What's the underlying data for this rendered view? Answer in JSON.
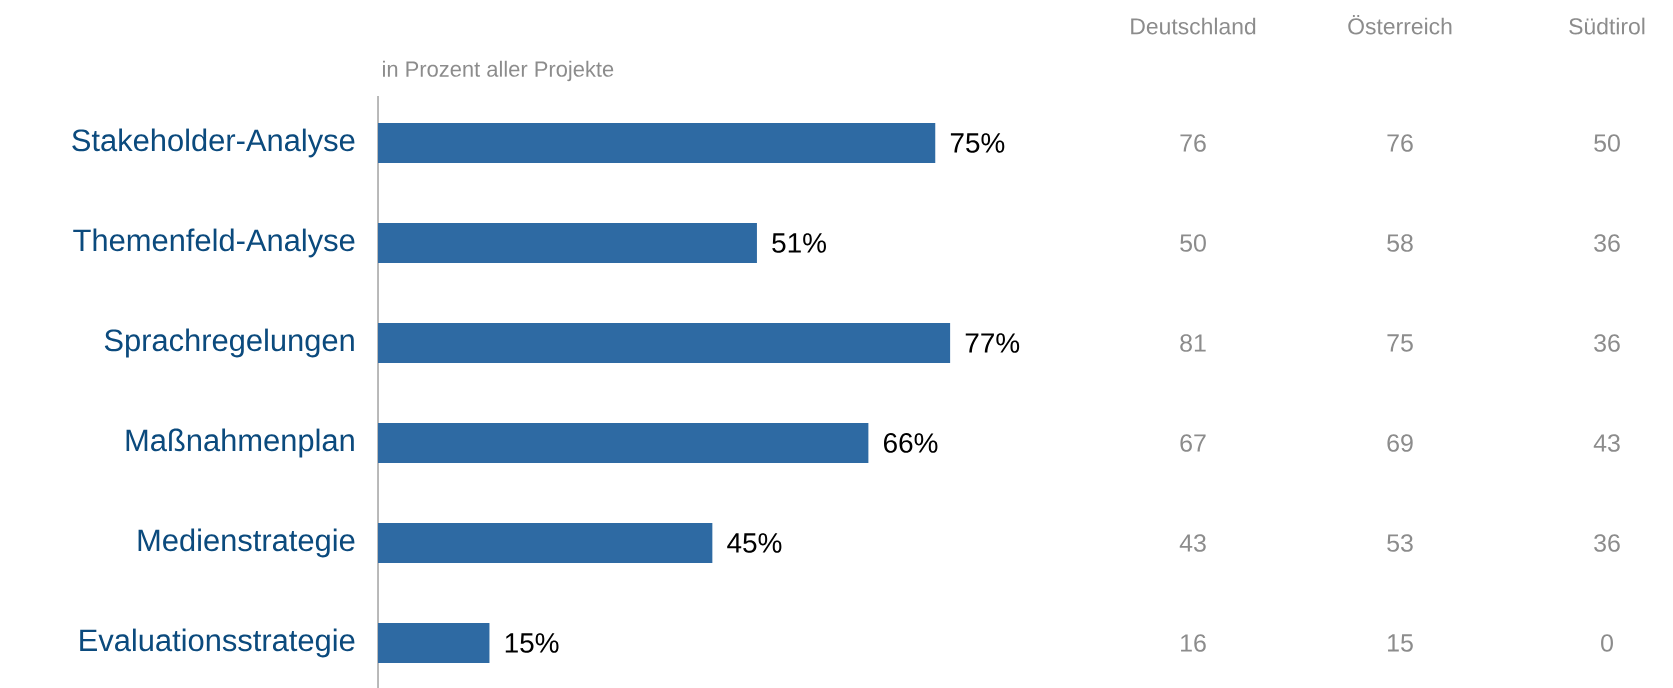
{
  "chart_data": [
    {
      "type": "bar",
      "orientation": "horizontal",
      "xlabel": "in Prozent aller Projekte",
      "categories": [
        "Stakeholder-Analyse",
        "Themenfeld-Analyse",
        "Sprachregelungen",
        "Maßnahmenplan",
        "Medienstrategie",
        "Evaluationsstrategie"
      ],
      "color": "#2e6aa3",
      "values": [
        75,
        51,
        77,
        66,
        45,
        15
      ],
      "value_labels": [
        "75%",
        "51%",
        "77%",
        "66%",
        "45%",
        "15%"
      ]
    },
    {
      "type": "heatmap",
      "categories": [
        "Deutschland",
        "Österreich",
        "Südtirol"
      ],
      "y_categories": [
        null,
        null,
        null,
        null,
        null,
        null
      ],
      "tick_labels": "x",
      "cells": [
        [
          76,
          76,
          50
        ],
        [
          50,
          58,
          36
        ],
        [
          81,
          75,
          36
        ],
        [
          67,
          69,
          43
        ],
        [
          43,
          53,
          36
        ],
        [
          16,
          15,
          0
        ]
      ],
      "data_labels": true
    }
  ]
}
